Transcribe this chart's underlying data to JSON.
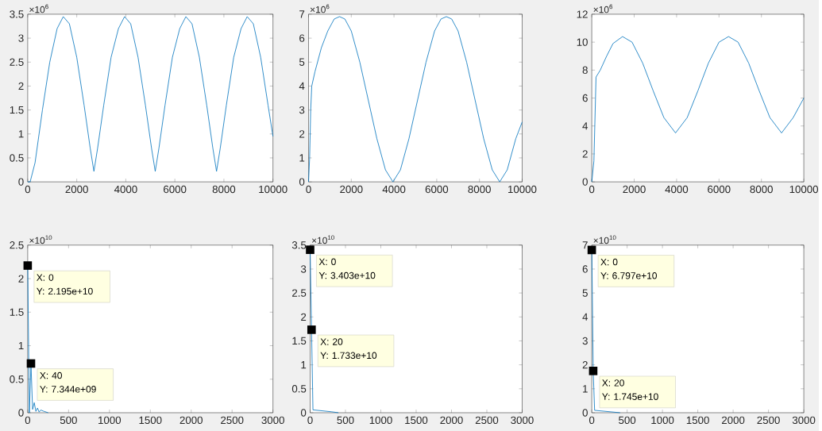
{
  "chart_data": [
    {
      "type": "line",
      "color": "#0072bd",
      "xlim": [
        0,
        10000
      ],
      "ylim": [
        0,
        3.5
      ],
      "xticks": [
        0,
        2000,
        4000,
        6000,
        8000,
        10000
      ],
      "yticks": [
        0,
        0.5,
        1,
        1.5,
        2,
        2.5,
        3,
        3.5
      ],
      "grid": false,
      "x": [
        0,
        100,
        300,
        600,
        900,
        1200,
        1450,
        1700,
        2000,
        2300,
        2550,
        2700,
        2850,
        3100,
        3400,
        3700,
        3950,
        4200,
        4500,
        4800,
        5050,
        5200,
        5350,
        5600,
        5900,
        6200,
        6450,
        6700,
        7000,
        7300,
        7550,
        7700,
        7850,
        8100,
        8400,
        8700,
        8950,
        9200,
        9500,
        9800,
        10000
      ],
      "values": [
        0,
        0,
        0.4,
        1.5,
        2.5,
        3.2,
        3.45,
        3.3,
        2.6,
        1.6,
        0.7,
        0.22,
        0.7,
        1.6,
        2.6,
        3.2,
        3.45,
        3.3,
        2.6,
        1.6,
        0.7,
        0.22,
        0.7,
        1.6,
        2.6,
        3.2,
        3.45,
        3.3,
        2.6,
        1.6,
        0.7,
        0.22,
        0.7,
        1.6,
        2.6,
        3.2,
        3.45,
        3.3,
        2.6,
        1.6,
        0.95
      ],
      "annotations": [
        "×10$^{6}$"
      ]
    },
    {
      "type": "line",
      "color": "#0072bd",
      "xlim": [
        0,
        10000
      ],
      "ylim": [
        0,
        7
      ],
      "xticks": [
        0,
        2000,
        4000,
        6000,
        8000,
        10000
      ],
      "yticks": [
        0,
        1,
        2,
        3,
        4,
        5,
        6,
        7
      ],
      "grid": false,
      "x": [
        0,
        50,
        100,
        150,
        300,
        600,
        900,
        1200,
        1450,
        1700,
        2000,
        2400,
        2800,
        3200,
        3600,
        3950,
        4300,
        4700,
        5100,
        5500,
        5900,
        6200,
        6450,
        6700,
        7000,
        7400,
        7800,
        8200,
        8600,
        8950,
        9300,
        9700,
        10000
      ],
      "values": [
        0,
        1.0,
        3.0,
        4.0,
        4.6,
        5.6,
        6.3,
        6.8,
        6.9,
        6.8,
        6.3,
        5.0,
        3.4,
        1.8,
        0.5,
        0,
        0.5,
        1.8,
        3.4,
        5.0,
        6.3,
        6.8,
        6.9,
        6.8,
        6.3,
        5.0,
        3.4,
        1.8,
        0.5,
        0,
        0.5,
        1.8,
        2.5
      ],
      "annotations": [
        "×10$^{6}$"
      ]
    },
    {
      "type": "line",
      "color": "#0072bd",
      "xlim": [
        0,
        10000
      ],
      "ylim": [
        0,
        12
      ],
      "xticks": [
        0,
        2000,
        4000,
        6000,
        8000,
        10000
      ],
      "yticks": [
        0,
        2,
        4,
        6,
        8,
        10,
        12
      ],
      "grid": false,
      "x": [
        0,
        100,
        200,
        400,
        700,
        1000,
        1450,
        1900,
        2400,
        2900,
        3400,
        3950,
        4500,
        5000,
        5500,
        6000,
        6450,
        6900,
        7400,
        7900,
        8400,
        8950,
        9500,
        10000
      ],
      "values": [
        0,
        1.5,
        7.5,
        8.0,
        9.0,
        9.9,
        10.4,
        10.0,
        8.5,
        6.5,
        4.6,
        3.5,
        4.6,
        6.5,
        8.5,
        10.0,
        10.4,
        10.0,
        8.5,
        6.5,
        4.6,
        3.5,
        4.6,
        6.0
      ],
      "annotations": [
        "×10$^{6}$"
      ]
    },
    {
      "type": "line",
      "color": "#0072bd",
      "xlim": [
        0,
        3000
      ],
      "ylim": [
        0,
        2.5
      ],
      "xticks": [
        0,
        500,
        1000,
        1500,
        2000,
        2500,
        3000
      ],
      "yticks": [
        0,
        0.5,
        1,
        1.5,
        2,
        2.5
      ],
      "grid": false,
      "x": [
        0,
        20,
        40,
        60,
        80,
        100,
        120,
        140,
        160,
        200,
        250
      ],
      "values": [
        2.2,
        0,
        0.73,
        0.05,
        0.15,
        0.02,
        0.07,
        0.01,
        0.04,
        0.02,
        0
      ],
      "annotations": [
        "×10$^{10}$",
        {
          "text": "X: 0",
          "x": 0,
          "y": 2.195
        },
        {
          "text": "Y: 2.195e+10",
          "x": 0,
          "y": 2.195
        },
        {
          "text": "X: 40",
          "x": 40,
          "y": 0.7344
        },
        {
          "text": "Y: 7.344e+09",
          "x": 40,
          "y": 0.7344
        }
      ]
    },
    {
      "type": "line",
      "color": "#0072bd",
      "xlim": [
        0,
        3000
      ],
      "ylim": [
        0,
        3.5
      ],
      "xticks": [
        0,
        500,
        1000,
        1500,
        2000,
        2500,
        3000
      ],
      "yticks": [
        0,
        0.5,
        1,
        1.5,
        2,
        2.5,
        3,
        3.5
      ],
      "grid": false,
      "x": [
        0,
        20,
        40,
        300,
        400
      ],
      "values": [
        3.4,
        1.73,
        0.06,
        0.02,
        0
      ],
      "annotations": [
        "×10$^{10}$",
        {
          "text": "X: 0",
          "x": 0,
          "y": 3.403
        },
        {
          "text": "Y: 3.403e+10",
          "x": 0,
          "y": 3.403
        },
        {
          "text": "X: 20",
          "x": 20,
          "y": 1.733
        },
        {
          "text": "Y: 1.733e+10",
          "x": 20,
          "y": 1.733
        }
      ]
    },
    {
      "type": "line",
      "color": "#0072bd",
      "xlim": [
        0,
        3000
      ],
      "ylim": [
        0,
        7
      ],
      "xticks": [
        0,
        500,
        1000,
        1500,
        2000,
        2500,
        3000
      ],
      "yticks": [
        0,
        1,
        2,
        3,
        4,
        5,
        6,
        7
      ],
      "grid": false,
      "x": [
        0,
        20,
        40,
        400
      ],
      "values": [
        6.8,
        1.75,
        0.1,
        0
      ],
      "annotations": [
        "×10$^{10}$",
        {
          "text": "X: 0",
          "x": 0,
          "y": 6.797
        },
        {
          "text": "Y: 6.797e+10",
          "x": 0,
          "y": 6.797
        },
        {
          "text": "X: 20",
          "x": 20,
          "y": 1.745
        },
        {
          "text": "Y: 1.745e+10",
          "x": 20,
          "y": 1.745
        }
      ]
    }
  ]
}
